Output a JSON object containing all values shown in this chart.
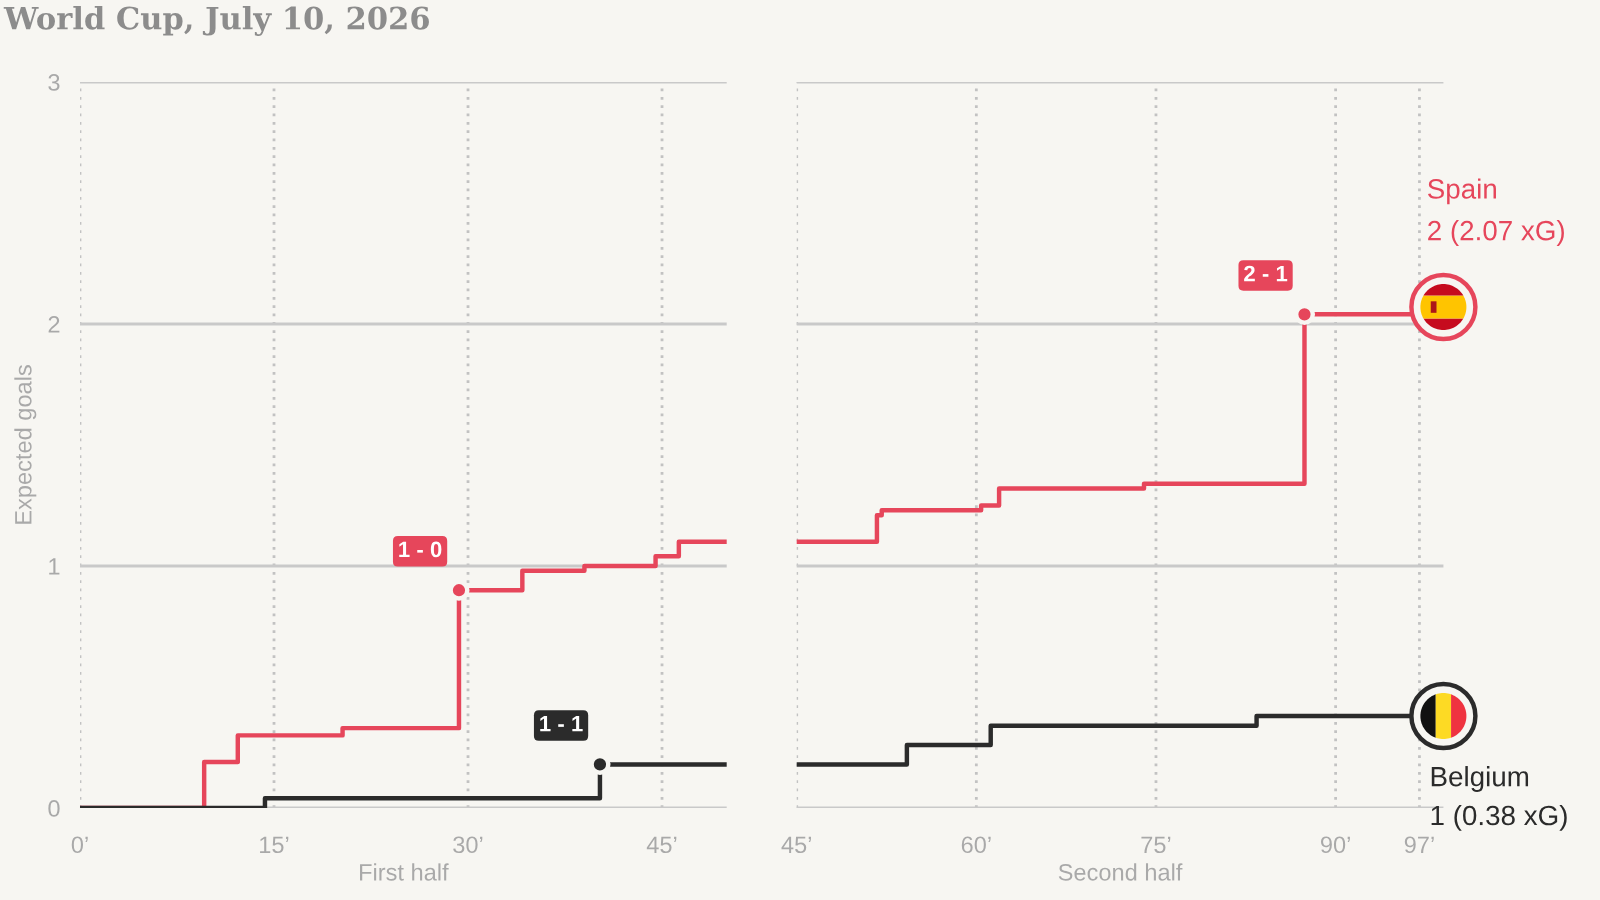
{
  "chart_data": [
    {
      "type": "step",
      "title": "World Cup, July 10, 2026",
      "ylabel": "Expected goals",
      "xlabel": "First half",
      "series": [
        {
          "color": "#e6465b",
          "x": [
            0,
            9.6,
            12.2,
            20.3,
            29.3,
            34.2,
            39.0,
            44.5,
            46.3,
            50
          ],
          "values": [
            0,
            0.19,
            0.3,
            0.33,
            0.9,
            0.98,
            1.0,
            1.04,
            1.1,
            1.1
          ]
        },
        {
          "color": "#2b2b2b",
          "x": [
            0,
            14.3,
            40.2,
            50
          ],
          "values": [
            0,
            0.04,
            0.18,
            0.18
          ]
        },
        {
          "type": "scatter",
          "marker": "circle",
          "colors": [
            "#e6465b",
            "#2b2b2b"
          ],
          "x": [
            29.3,
            40.2
          ],
          "values": [
            0.9,
            0.18
          ],
          "value_labels": [
            "1 - 0",
            "1 - 1"
          ]
        }
      ],
      "xlim": [
        0,
        50
      ],
      "ylim": [
        0,
        3
      ],
      "xticks": [
        {
          "value": 0,
          "label": "0’"
        },
        {
          "value": 15,
          "label": "15’"
        },
        {
          "value": 30,
          "label": "30’"
        },
        {
          "value": 45,
          "label": "45’"
        }
      ],
      "yticks": [
        0,
        1,
        2,
        3
      ],
      "grid": true
    },
    {
      "type": "step",
      "xlabel": "Second half",
      "series": [
        {
          "name": "Spain",
          "color": "#e6465b",
          "x": [
            45,
            51.7,
            52.1,
            60.4,
            61.9,
            74.0,
            87.4,
            99
          ],
          "values": [
            1.1,
            1.21,
            1.23,
            1.25,
            1.32,
            1.34,
            2.04,
            2.07
          ],
          "value_labels": [
            null,
            null,
            null,
            null,
            null,
            null,
            null,
            "2 (2.07 xG)"
          ]
        },
        {
          "name": "Belgium",
          "color": "#2b2b2b",
          "x": [
            45,
            54.2,
            61.2,
            83.4,
            99
          ],
          "values": [
            0.18,
            0.26,
            0.34,
            0.38,
            0.38
          ],
          "value_labels": [
            null,
            null,
            null,
            null,
            "1 (0.38 xG)"
          ]
        },
        {
          "type": "scatter",
          "marker": "circle",
          "colors": [
            "#e6465b"
          ],
          "x": [
            87.4
          ],
          "values": [
            2.04
          ],
          "value_labels": [
            "2 - 1"
          ]
        }
      ],
      "xlim": [
        45,
        99
      ],
      "ylim": [
        0,
        3
      ],
      "xticks": [
        {
          "value": 45,
          "label": "45’"
        },
        {
          "value": 60,
          "label": "60’"
        },
        {
          "value": 75,
          "label": "75’"
        },
        {
          "value": 90,
          "label": "90’"
        },
        {
          "value": 97,
          "label": "97’"
        }
      ],
      "yticks": [
        0,
        1,
        2,
        3
      ],
      "grid": true,
      "tick_labels": "x"
    }
  ]
}
